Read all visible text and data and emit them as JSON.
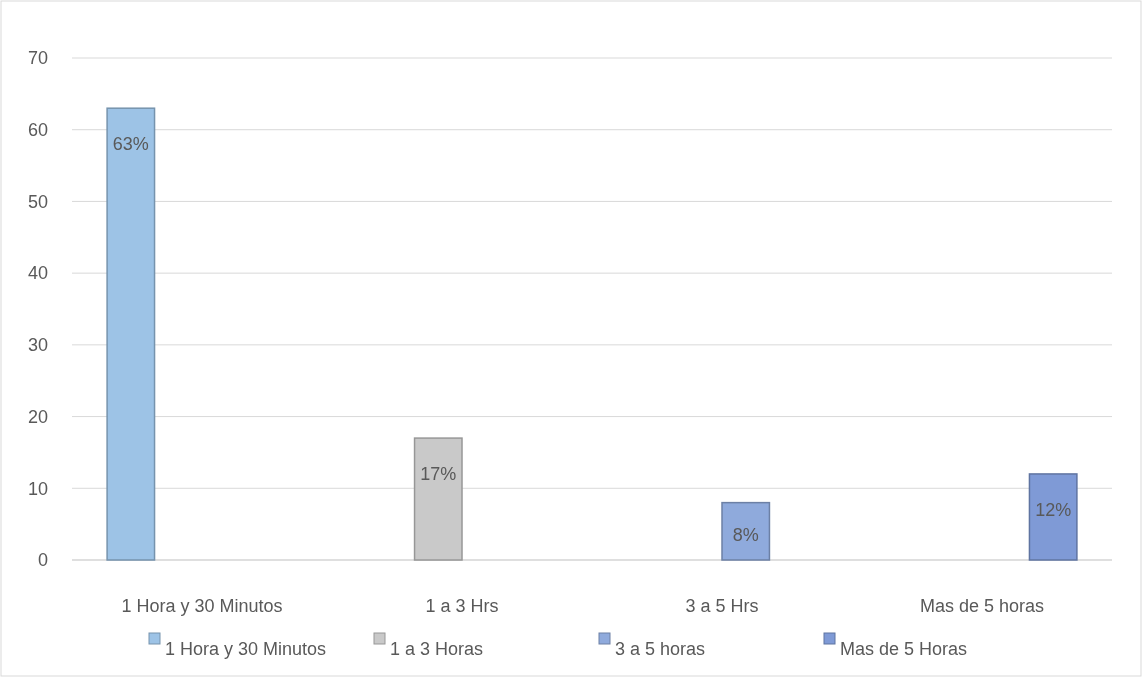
{
  "chart_data": {
    "type": "bar",
    "categories": [
      "1 Hora y 30 Minutos",
      "1 a 3 Hrs",
      "3 a 5 Hrs",
      "Mas de 5 horas"
    ],
    "series": [
      {
        "name": "1 Hora y 30 Minutos",
        "color": "#9dc3e6",
        "values": [
          63,
          null,
          null,
          null
        ],
        "value_labels": [
          "63%",
          null,
          null,
          null
        ]
      },
      {
        "name": "1 a 3 Horas",
        "color": "#c9c9c9",
        "values": [
          null,
          17,
          null,
          null
        ],
        "value_labels": [
          null,
          "17%",
          null,
          null
        ]
      },
      {
        "name": "3 a 5 horas",
        "color": "#8faadc",
        "values": [
          null,
          null,
          8,
          null
        ],
        "value_labels": [
          null,
          null,
          "8%",
          null
        ]
      },
      {
        "name": "Mas de 5 Horas",
        "color": "#7f9ad6",
        "values": [
          null,
          null,
          null,
          12
        ],
        "value_labels": [
          null,
          null,
          null,
          "12%"
        ]
      }
    ],
    "ylim": [
      0,
      70
    ],
    "yticks": [
      0,
      10,
      20,
      30,
      40,
      50,
      60,
      70
    ],
    "grid": "y",
    "legend": "bottom"
  }
}
